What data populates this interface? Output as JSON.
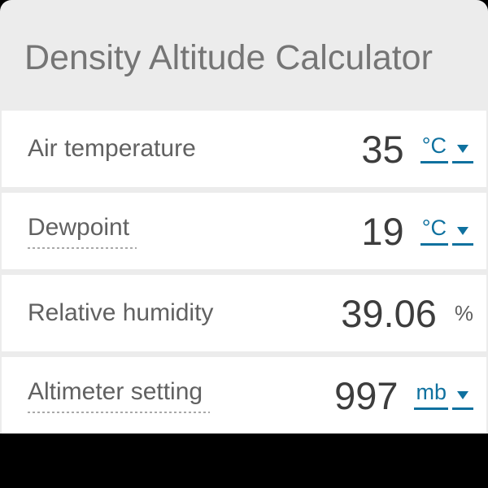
{
  "title": "Density Altitude Calculator",
  "colors": {
    "page_background": "#000000",
    "header_background": "#ececec",
    "header_text": "#757575",
    "row_background": "#ffffff",
    "separator": "#ececec",
    "label_text": "#616161",
    "value_text": "#3d3d3d",
    "unit_link": "#0f719f",
    "percent_text": "#5e5e5e",
    "dotted_underline": "#a9a9a9"
  },
  "rows": [
    {
      "label": "Air temperature",
      "value": "35",
      "unit": "°C",
      "unit_is_dropdown": true,
      "label_has_tooltip": false
    },
    {
      "label": "Dewpoint",
      "value": "19",
      "unit": "°C",
      "unit_is_dropdown": true,
      "label_has_tooltip": true
    },
    {
      "label": "Relative humidity",
      "value": "39.06",
      "unit": "%",
      "unit_is_dropdown": false,
      "label_has_tooltip": false
    },
    {
      "label": "Altimeter setting",
      "value": "997",
      "unit": "mb",
      "unit_is_dropdown": true,
      "label_has_tooltip": true
    }
  ],
  "icons": {
    "dropdown_arrow": "triangle-down"
  }
}
